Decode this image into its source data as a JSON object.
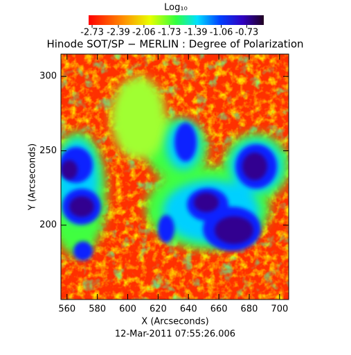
{
  "chart_data": {
    "type": "heatmap",
    "title": "Hinode SOT/SP − MERLIN : Degree of Polarization",
    "colorbar_label": "Log₁₀",
    "clim": [
      -2.775,
      -0.51
    ],
    "cticks": [
      -2.73,
      -2.39,
      -2.06,
      -1.73,
      -1.39,
      -1.06,
      -0.73
    ],
    "x_label": "X (Arcseconds)",
    "y_label": "Y (Arcseconds)",
    "xlim": [
      556,
      706
    ],
    "xticks": [
      560,
      580,
      600,
      620,
      640,
      660,
      680,
      700
    ],
    "ylim": [
      150,
      315
    ],
    "yticks": [
      200,
      250,
      300
    ],
    "date": "12-Mar-2011 07:55:26.006"
  }
}
